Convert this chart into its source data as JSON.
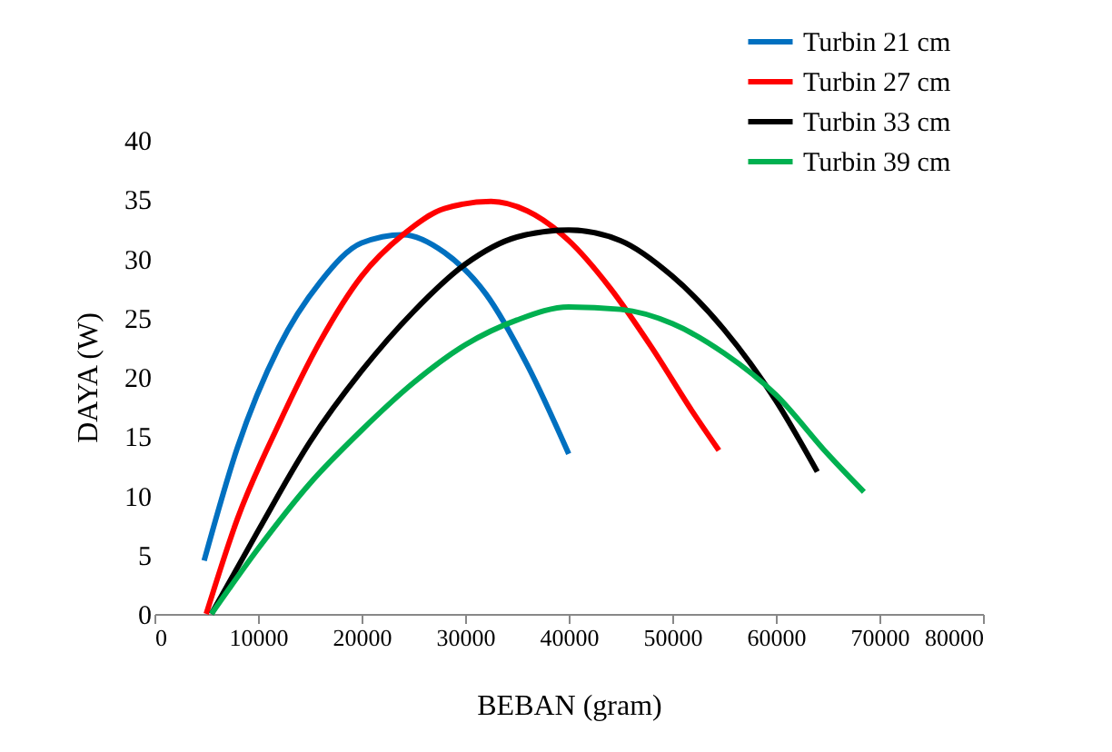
{
  "chart_data": {
    "type": "line",
    "xlabel": "BEBAN (gram)",
    "ylabel": "DAYA (W)",
    "xlim": [
      0,
      80000
    ],
    "xticks": [
      0,
      10000,
      20000,
      30000,
      40000,
      50000,
      60000,
      70000,
      80000
    ],
    "ylim": [
      0,
      40
    ],
    "yticks": [
      0,
      5,
      10,
      15,
      20,
      25,
      30,
      35,
      40
    ],
    "legend": "top right",
    "series": [
      {
        "name": "Turbin 21 cm",
        "color": "#0070c0",
        "x": [
          4800,
          8000,
          12000,
          16000,
          20000,
          24000,
          28000,
          32000,
          36000,
          40000
        ],
        "values": [
          4.5,
          14,
          22.5,
          28,
          31.3,
          32,
          30.5,
          27,
          21,
          13.5
        ]
      },
      {
        "name": "Turbin 27 cm",
        "color": "#ff0000",
        "x": [
          5000,
          8000,
          12000,
          16000,
          20000,
          24000,
          28000,
          32500,
          36000,
          40000,
          44000,
          48000,
          52000,
          54500
        ],
        "values": [
          0,
          8,
          16,
          23,
          28.5,
          32,
          34.2,
          34.8,
          34,
          31.5,
          27.5,
          22.5,
          17,
          13.8
        ]
      },
      {
        "name": "Turbin 33 cm",
        "color": "#000000",
        "x": [
          5500,
          10000,
          15000,
          20000,
          25000,
          30000,
          35000,
          40000,
          45000,
          50000,
          55000,
          60000,
          64000
        ],
        "values": [
          0,
          7,
          14.5,
          20.5,
          25.5,
          29.5,
          31.8,
          32.4,
          31.5,
          28.5,
          24,
          18,
          12
        ]
      },
      {
        "name": "Turbin 39 cm",
        "color": "#00b050",
        "x": [
          5500,
          10000,
          15000,
          20000,
          25000,
          30000,
          35000,
          40000,
          45000,
          50000,
          55000,
          60000,
          65000,
          68500
        ],
        "values": [
          0,
          5.5,
          11,
          15.5,
          19.5,
          22.7,
          24.8,
          25.9,
          25.7,
          24.5,
          22,
          18.5,
          13.5,
          10.3
        ]
      }
    ]
  }
}
